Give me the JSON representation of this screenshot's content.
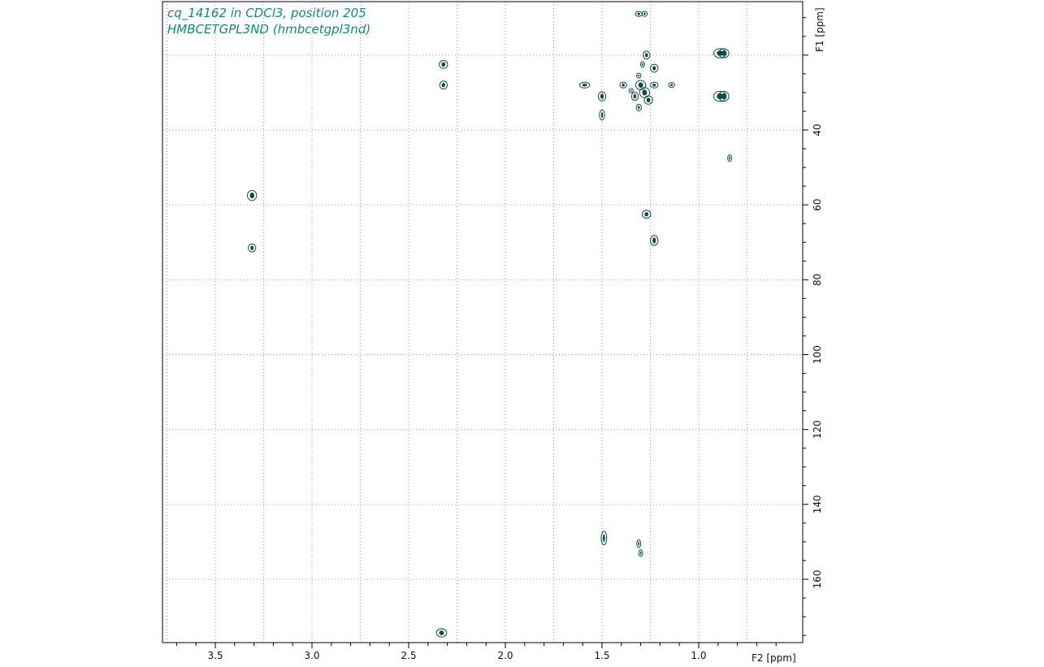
{
  "title": {
    "line1": "cq_14162 in CDCl3, position 205",
    "line2": "HMBCETGPL3ND (hmbcetgpl3nd)"
  },
  "colors": {
    "title": "#0f8c78",
    "contour": "#0d4d49",
    "grid": "#9a9a9a",
    "frame": "#000000"
  },
  "chart_data": {
    "type": "scatter",
    "x_axis": {
      "label": "F2 [ppm]",
      "range": [
        3.8,
        0.6
      ],
      "reversed": true,
      "ticks": [
        3.5,
        3.0,
        2.5,
        2.0,
        1.5,
        1.0
      ],
      "tick_labels": [
        "3.5",
        "3.0",
        "2.5",
        "2.0",
        "1.5",
        "1.0"
      ]
    },
    "y_axis": {
      "label": "F1 [ppm]",
      "range": [
        5,
        175
      ],
      "reversed": true,
      "position": "right",
      "rotated_labels": true,
      "ticks": [
        40,
        60,
        80,
        100,
        120,
        140,
        160
      ],
      "tick_labels": [
        "40",
        "60",
        "80",
        "100",
        "120",
        "140",
        "160"
      ]
    },
    "grid": true,
    "peaks": [
      {
        "x": 1.31,
        "y": 9,
        "w": 3.0,
        "h": 0.8
      },
      {
        "x": 1.28,
        "y": 9,
        "w": 2.0,
        "h": 0.8
      },
      {
        "x": 2.32,
        "y": 22.5,
        "w": 4.0,
        "h": 1.5
      },
      {
        "x": 2.32,
        "y": 28,
        "w": 3.5,
        "h": 1.5
      },
      {
        "x": 1.27,
        "y": 20,
        "w": 3.0,
        "h": 1.5
      },
      {
        "x": 1.23,
        "y": 23.5,
        "w": 3.5,
        "h": 1.5
      },
      {
        "x": 0.89,
        "y": 19.5,
        "w": 6.5,
        "h": 1.8
      },
      {
        "x": 0.87,
        "y": 19.5,
        "w": 5.0,
        "h": 1.8
      },
      {
        "x": 0.89,
        "y": 31,
        "w": 6.5,
        "h": 2.0
      },
      {
        "x": 0.87,
        "y": 31,
        "w": 5.0,
        "h": 2.0
      },
      {
        "x": 1.59,
        "y": 28,
        "w": 5.0,
        "h": 1.0
      },
      {
        "x": 1.5,
        "y": 31,
        "w": 3.5,
        "h": 1.8
      },
      {
        "x": 1.5,
        "y": 36,
        "w": 2.0,
        "h": 2.0
      },
      {
        "x": 1.39,
        "y": 28,
        "w": 3.0,
        "h": 1.0
      },
      {
        "x": 1.35,
        "y": 29.5,
        "w": 1.5,
        "h": 0.6
      },
      {
        "x": 1.33,
        "y": 31,
        "w": 3.0,
        "h": 1.5
      },
      {
        "x": 1.3,
        "y": 28,
        "w": 5.0,
        "h": 1.8
      },
      {
        "x": 1.28,
        "y": 30,
        "w": 5.0,
        "h": 2.0
      },
      {
        "x": 1.26,
        "y": 32,
        "w": 4.0,
        "h": 1.6
      },
      {
        "x": 1.23,
        "y": 28,
        "w": 3.5,
        "h": 1.0
      },
      {
        "x": 1.31,
        "y": 34,
        "w": 2.0,
        "h": 1.2
      },
      {
        "x": 1.14,
        "y": 28,
        "w": 2.5,
        "h": 0.8
      },
      {
        "x": 1.31,
        "y": 25.5,
        "w": 1.5,
        "h": 0.8
      },
      {
        "x": 1.29,
        "y": 22.5,
        "w": 1.2,
        "h": 1.0
      },
      {
        "x": 0.84,
        "y": 47.5,
        "w": 1.2,
        "h": 1.2
      },
      {
        "x": 3.31,
        "y": 57.5,
        "w": 4.5,
        "h": 2.0
      },
      {
        "x": 3.31,
        "y": 71.5,
        "w": 3.5,
        "h": 1.5
      },
      {
        "x": 1.27,
        "y": 62.5,
        "w": 4.0,
        "h": 1.5
      },
      {
        "x": 1.23,
        "y": 69.5,
        "w": 3.5,
        "h": 2.0
      },
      {
        "x": 1.49,
        "y": 149,
        "w": 2.2,
        "h": 2.8
      },
      {
        "x": 1.31,
        "y": 150.5,
        "w": 1.2,
        "h": 1.5
      },
      {
        "x": 1.3,
        "y": 153,
        "w": 1.2,
        "h": 1.2
      },
      {
        "x": 2.33,
        "y": 183.5,
        "w": 5.0,
        "h": 1.6
      }
    ]
  }
}
